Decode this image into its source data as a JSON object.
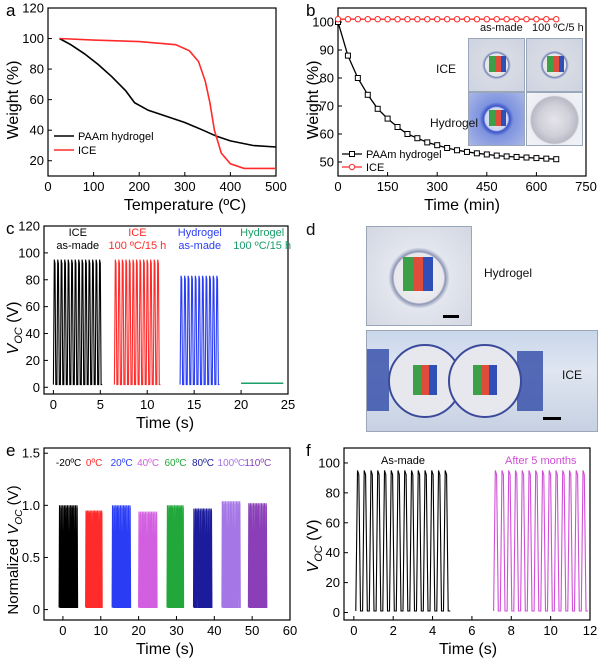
{
  "panels": {
    "a": {
      "letter": "a",
      "type": "line",
      "xlabel": "Temperature (ºC)",
      "ylabel": "Weight (%)",
      "xlim": [
        0,
        500
      ],
      "ylim": [
        10,
        120
      ],
      "xticks": [
        "0",
        "100",
        "200",
        "300",
        "400",
        "500"
      ],
      "yticks": [
        "20",
        "40",
        "60",
        "80",
        "100",
        "120"
      ],
      "legend_position": "lower-left",
      "series": [
        {
          "name": "PAAm hydrogel",
          "color": "#000000",
          "x": [
            25,
            50,
            80,
            110,
            140,
            170,
            190,
            220,
            260,
            300,
            340,
            370,
            400,
            450,
            500
          ],
          "y": [
            100,
            96,
            90,
            83,
            75,
            66,
            58,
            53,
            49,
            45,
            40,
            36,
            33,
            30,
            29
          ]
        },
        {
          "name": "ICE",
          "color": "#ff2a2a",
          "x": [
            25,
            100,
            200,
            280,
            310,
            330,
            345,
            355,
            365,
            380,
            400,
            430,
            460,
            500
          ],
          "y": [
            100,
            99,
            98,
            96,
            92,
            85,
            72,
            58,
            40,
            25,
            18,
            15,
            15,
            15
          ]
        }
      ]
    },
    "b": {
      "letter": "b",
      "type": "line",
      "xlabel": "Time (min)",
      "ylabel": "Weight (%)",
      "xlim": [
        0,
        750
      ],
      "ylim": [
        45,
        105
      ],
      "xticks": [
        "0",
        "150",
        "300",
        "450",
        "600",
        "750"
      ],
      "yticks": [
        "50",
        "60",
        "70",
        "80",
        "90",
        "100"
      ],
      "legend_position": "lower-left",
      "series": [
        {
          "name": "PAAm hydrogel",
          "color": "#000000",
          "marker": "square",
          "x": [
            0,
            30,
            60,
            90,
            120,
            150,
            180,
            210,
            240,
            270,
            300,
            330,
            360,
            390,
            420,
            450,
            480,
            510,
            540,
            570,
            600,
            630,
            660
          ],
          "y": [
            100,
            88,
            80,
            74,
            69,
            65.5,
            62.5,
            60,
            58.5,
            57,
            56,
            55,
            54.2,
            53.6,
            53.1,
            52.7,
            52.3,
            52.0,
            51.8,
            51.6,
            51.4,
            51.2,
            51.0
          ]
        },
        {
          "name": "ICE",
          "color": "#ff2a2a",
          "marker": "circle",
          "x": [
            0,
            30,
            60,
            90,
            120,
            150,
            180,
            210,
            240,
            270,
            300,
            330,
            360,
            390,
            420,
            450,
            480,
            510,
            540,
            570,
            600,
            630,
            660
          ],
          "y": [
            101,
            101,
            101,
            101,
            101,
            101,
            101,
            101,
            101,
            101,
            101,
            101,
            101,
            101,
            101,
            101,
            101,
            101,
            101,
            101,
            101,
            101,
            101
          ]
        }
      ],
      "inset": {
        "col_labels": [
          "as-made",
          "100 ºC/5 h"
        ],
        "row_labels": [
          "ICE",
          "Hydrogel"
        ]
      }
    },
    "c": {
      "letter": "c",
      "type": "line",
      "xlabel": "Time (s)",
      "ylabel": "V_OC (V)",
      "xlim": [
        -1,
        25
      ],
      "ylim": [
        -5,
        120
      ],
      "xticks": [
        "0",
        "5",
        "10",
        "15",
        "20",
        "25"
      ],
      "yticks": [
        "0",
        "20",
        "40",
        "60",
        "80",
        "100",
        "120"
      ],
      "segments": [
        {
          "label_line1": "ICE",
          "label_line2": "as-made",
          "color": "#000000",
          "x_start": 0,
          "x_end": 5.2,
          "peak": 95,
          "cycles": 14
        },
        {
          "label_line1": "ICE",
          "label_line2": "100 ºC/15 h",
          "color": "#ff2a2a",
          "x_start": 6.5,
          "x_end": 11.4,
          "peak": 95,
          "cycles": 13
        },
        {
          "label_line1": "Hydrogel",
          "label_line2": "as-made",
          "color": "#2a3df5",
          "x_start": 13.5,
          "x_end": 17.7,
          "peak": 83,
          "cycles": 11
        },
        {
          "label_line1": "Hydrogel",
          "label_line2": "100 ºC/15 h",
          "color": "#1a9e6a",
          "x_start": 20,
          "x_end": 24.5,
          "peak": 3,
          "cycles": 0
        }
      ]
    },
    "d": {
      "letter": "d",
      "photo_labels": [
        "Hydrogel",
        "ICE"
      ]
    },
    "e": {
      "letter": "e",
      "type": "line",
      "xlabel": "Time (s)",
      "ylabel": "Normalized V_OC (V)",
      "xlim": [
        -5,
        60
      ],
      "ylim": [
        -0.1,
        1.55
      ],
      "xticks": [
        "0",
        "10",
        "20",
        "30",
        "40",
        "50",
        "60"
      ],
      "yticks": [
        "0",
        "0.5",
        "1.0",
        "1.5"
      ],
      "segments": [
        {
          "label": "-20ºC",
          "color": "#000000",
          "x_start": -1,
          "x_end": 4,
          "peak": 1.0
        },
        {
          "label": "0ºC",
          "color": "#ff2a2a",
          "x_start": 6,
          "x_end": 10.5,
          "peak": 0.95
        },
        {
          "label": "20ºC",
          "color": "#2a3df5",
          "x_start": 13,
          "x_end": 18,
          "peak": 1.0
        },
        {
          "label": "40ºC",
          "color": "#d25ee0",
          "x_start": 20,
          "x_end": 25,
          "peak": 0.94
        },
        {
          "label": "60ºC",
          "color": "#22a83a",
          "x_start": 27.5,
          "x_end": 32,
          "peak": 1.0
        },
        {
          "label": "80ºC",
          "color": "#1b1b9c",
          "x_start": 34.5,
          "x_end": 39.5,
          "peak": 0.97
        },
        {
          "label": "100ºC",
          "color": "#a576e6",
          "x_start": 42,
          "x_end": 47,
          "peak": 1.04
        },
        {
          "label": "110ºC",
          "color": "#8a3fb8",
          "x_start": 49,
          "x_end": 54,
          "peak": 1.02
        }
      ]
    },
    "f": {
      "letter": "f",
      "type": "line",
      "xlabel": "Time (s)",
      "ylabel": "V_OC (V)",
      "xlim": [
        -0.5,
        12
      ],
      "ylim": [
        -5,
        110
      ],
      "xticks": [
        "0",
        "2",
        "4",
        "6",
        "8",
        "10",
        "12"
      ],
      "yticks": [
        "0",
        "20",
        "40",
        "60",
        "80",
        "100"
      ],
      "segments": [
        {
          "label": "As-made",
          "color": "#000000",
          "x_start": 0.1,
          "x_end": 4.9,
          "peak": 95,
          "cycles": 14
        },
        {
          "label": "After 5 months",
          "color": "#d04fd6",
          "x_start": 7.1,
          "x_end": 11.9,
          "peak": 95,
          "cycles": 14
        }
      ]
    }
  }
}
